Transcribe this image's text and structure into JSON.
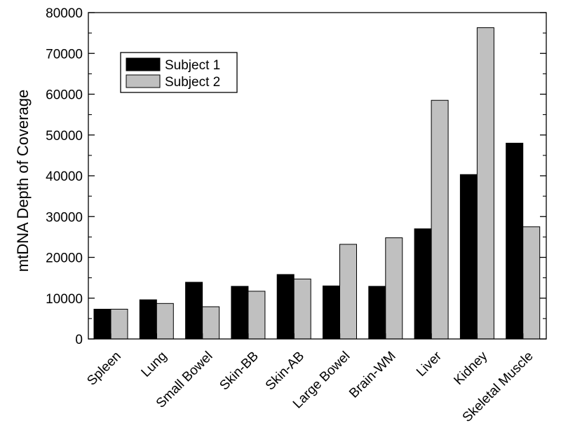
{
  "chart_data": {
    "type": "bar",
    "title": "",
    "xlabel": "",
    "ylabel": "mtDNA Depth of Coverage",
    "ylim": [
      0,
      80000
    ],
    "yticks": [
      0,
      10000,
      20000,
      30000,
      40000,
      50000,
      60000,
      70000,
      80000
    ],
    "categories": [
      "Spleen",
      "Lung",
      "Small Bowel",
      "Skin-BB",
      "Skin-AB",
      "Large Bowel",
      "Brain-WM",
      "Liver",
      "Kidney",
      "Skeletal Muscle"
    ],
    "series": [
      {
        "name": "Subject 1",
        "color": "#000000",
        "values": [
          7300,
          9600,
          13900,
          12900,
          15800,
          13000,
          12900,
          27000,
          40300,
          48000
        ]
      },
      {
        "name": "Subject 2",
        "color": "#c0c0c0",
        "values": [
          7300,
          8700,
          7900,
          11700,
          14700,
          23200,
          24800,
          58500,
          76300,
          27500
        ]
      }
    ],
    "grid": false,
    "legend_position": "top-left"
  }
}
